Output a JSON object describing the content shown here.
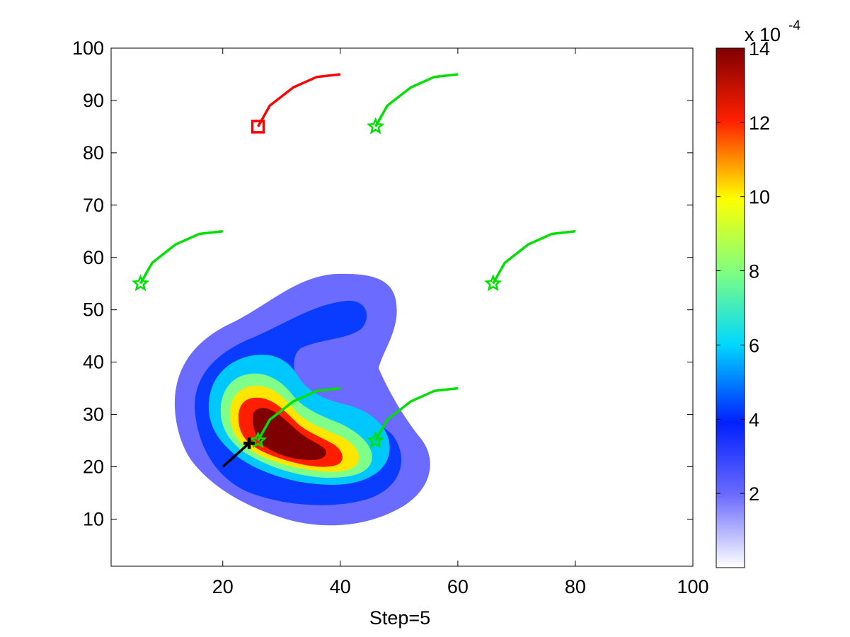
{
  "chart_data": {
    "type": "contour",
    "xlabel": "Step=5",
    "ylabel": "",
    "title": "",
    "xlim": [
      1,
      100
    ],
    "ylim": [
      1,
      100
    ],
    "x_ticks": [
      20,
      40,
      60,
      80,
      100
    ],
    "y_ticks": [
      10,
      20,
      30,
      40,
      50,
      60,
      70,
      80,
      90,
      100
    ],
    "grid": false,
    "colorbar": {
      "range": [
        0,
        14
      ],
      "ticks": [
        2,
        4,
        6,
        8,
        10,
        12,
        14
      ],
      "exponent_label": "x 10",
      "exponent_power": "-4",
      "colormap": "jet-like (white at low end)"
    },
    "contour_levels": [
      {
        "level": 2,
        "color": "#6b6bff"
      },
      {
        "level": 4,
        "color": "#0a3cff"
      },
      {
        "level": 6,
        "color": "#00c8ff"
      },
      {
        "level": 8,
        "color": "#7fff8a"
      },
      {
        "level": 10,
        "color": "#ffe600"
      },
      {
        "level": 12,
        "color": "#ff1e00"
      },
      {
        "level": 13,
        "color": "#7f0000"
      }
    ],
    "contour_shape_description": "curved blob centred near (33,25); hole near (42,38); peak near (31,25)",
    "agents": [
      {
        "id": "target",
        "color": "#ff0000",
        "marker": "square",
        "position": [
          26,
          85
        ],
        "trail": [
          [
            26,
            85
          ],
          [
            28,
            89
          ],
          [
            32,
            92.5
          ],
          [
            36,
            94.5
          ],
          [
            40,
            95
          ]
        ]
      },
      {
        "id": "agent-1",
        "color": "#00e000",
        "marker": "star",
        "position": [
          46,
          85
        ],
        "trail": [
          [
            46,
            85
          ],
          [
            48,
            89
          ],
          [
            52,
            92.5
          ],
          [
            56,
            94.5
          ],
          [
            60,
            95
          ]
        ]
      },
      {
        "id": "agent-2",
        "color": "#00e000",
        "marker": "star",
        "position": [
          6,
          55
        ],
        "trail": [
          [
            6,
            55
          ],
          [
            8,
            59
          ],
          [
            12,
            62.5
          ],
          [
            16,
            64.5
          ],
          [
            20,
            65
          ]
        ]
      },
      {
        "id": "agent-3",
        "color": "#00e000",
        "marker": "star",
        "position": [
          66,
          55
        ],
        "trail": [
          [
            66,
            55
          ],
          [
            68,
            59
          ],
          [
            72,
            62.5
          ],
          [
            76,
            64.5
          ],
          [
            80,
            65
          ]
        ]
      },
      {
        "id": "agent-4",
        "color": "#00e000",
        "marker": "star",
        "position": [
          26,
          25
        ],
        "trail": [
          [
            26,
            25
          ],
          [
            28,
            29
          ],
          [
            32,
            32.5
          ],
          [
            36,
            34.5
          ],
          [
            40,
            35
          ]
        ]
      },
      {
        "id": "agent-5",
        "color": "#00e000",
        "marker": "star",
        "position": [
          46,
          25
        ],
        "trail": [
          [
            46,
            25
          ],
          [
            48,
            29
          ],
          [
            52,
            32.5
          ],
          [
            56,
            34.5
          ],
          [
            60,
            35
          ]
        ]
      },
      {
        "id": "source-estimate",
        "color": "#000000",
        "marker": "plus",
        "position": [
          24.5,
          24.5
        ],
        "trail": [
          [
            20,
            20
          ],
          [
            22,
            22
          ],
          [
            24.5,
            24.5
          ]
        ]
      }
    ]
  }
}
